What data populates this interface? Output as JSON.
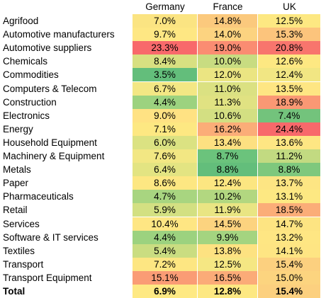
{
  "chart_data": {
    "type": "heatmap",
    "columns": [
      "Germany",
      "France",
      "UK"
    ],
    "rows": [
      {
        "label": "Agrifood",
        "values": [
          "7.0%",
          "14.8%",
          "12.5%"
        ],
        "colors": [
          "#fbe482",
          "#fbc97d",
          "#fde882"
        ]
      },
      {
        "label": "Automotive manufacturers",
        "values": [
          "9.7%",
          "14.0%",
          "15.3%"
        ],
        "colors": [
          "#fee783",
          "#fcd380",
          "#fcc47c"
        ]
      },
      {
        "label": "Automotive suppliers",
        "values": [
          "23.3%",
          "19.0%",
          "20.8%"
        ],
        "colors": [
          "#f8696b",
          "#fa8c72",
          "#f8756d"
        ]
      },
      {
        "label": "Chemicals",
        "values": [
          "8.4%",
          "10.0%",
          "12.6%"
        ],
        "colors": [
          "#d8e081",
          "#c8dc81",
          "#fde882"
        ]
      },
      {
        "label": "Commodities",
        "values": [
          "3.5%",
          "12.0%",
          "12.4%"
        ],
        "colors": [
          "#63be7b",
          "#ebe582",
          "#f1e683"
        ]
      },
      {
        "label": "Computers & Telecom",
        "values": [
          "6.7%",
          "11.0%",
          "13.5%"
        ],
        "colors": [
          "#f3e784",
          "#dbe182",
          "#fee683"
        ]
      },
      {
        "label": "Construction",
        "values": [
          "4.4%",
          "11.3%",
          "18.9%"
        ],
        "colors": [
          "#9cd27f",
          "#e0e282",
          "#fa9874"
        ]
      },
      {
        "label": "Electronics",
        "values": [
          "9.0%",
          "10.6%",
          "7.4%"
        ],
        "colors": [
          "#ffe283",
          "#d3df82",
          "#73c37c"
        ]
      },
      {
        "label": "Energy",
        "values": [
          "7.1%",
          "16.2%",
          "24.4%"
        ],
        "colors": [
          "#fde882",
          "#fbad78",
          "#f8696b"
        ]
      },
      {
        "label": "Household Equipment",
        "values": [
          "6.0%",
          "13.4%",
          "13.6%"
        ],
        "colors": [
          "#dbe282",
          "#fde081",
          "#fee683"
        ]
      },
      {
        "label": "Machinery & Equipment",
        "values": [
          "7.6%",
          "8.7%",
          "11.2%"
        ],
        "colors": [
          "#f2e783",
          "#6bc37c",
          "#c2da81"
        ]
      },
      {
        "label": "Metals",
        "values": [
          "6.4%",
          "8.8%",
          "8.8%"
        ],
        "colors": [
          "#e3e482",
          "#63be7b",
          "#7ec87d"
        ]
      },
      {
        "label": "Paper",
        "values": [
          "8.6%",
          "12.4%",
          "13.7%"
        ],
        "colors": [
          "#fde782",
          "#fce681",
          "#fde583"
        ]
      },
      {
        "label": "Pharmaceuticals",
        "values": [
          "4.7%",
          "10.2%",
          "13.1%"
        ],
        "colors": [
          "#a8d580",
          "#b2d780",
          "#fde882"
        ]
      },
      {
        "label": "Retail",
        "values": [
          "5.9%",
          "11.9%",
          "18.5%"
        ],
        "colors": [
          "#d3e082",
          "#e9e583",
          "#fbad78"
        ]
      },
      {
        "label": "Services",
        "values": [
          "10.4%",
          "14.5%",
          "14.7%"
        ],
        "colors": [
          "#fee683",
          "#fcd37f",
          "#fde482"
        ]
      },
      {
        "label": "Software & IT services",
        "values": [
          "4.4%",
          "9.9%",
          "13.2%"
        ],
        "colors": [
          "#9cd27f",
          "#a4d480",
          "#fee683"
        ]
      },
      {
        "label": "Textiles",
        "values": [
          "5.4%",
          "13.8%",
          "14.1%"
        ],
        "colors": [
          "#cadd81",
          "#fde281",
          "#fee583"
        ]
      },
      {
        "label": "Transport",
        "values": [
          "7.2%",
          "12.5%",
          "15.4%"
        ],
        "colors": [
          "#fde682",
          "#f5e783",
          "#fcd07f"
        ]
      },
      {
        "label": "Transport Equipment",
        "values": [
          "15.1%",
          "16.5%",
          "15.0%"
        ],
        "colors": [
          "#fa9c75",
          "#fbab78",
          "#fcd47f"
        ]
      },
      {
        "label": "Total",
        "values": [
          "6.9%",
          "12.8%",
          "15.4%"
        ],
        "colors": [
          "#fee983",
          "#fde882",
          "#fcd07f"
        ],
        "bold": true
      }
    ]
  }
}
